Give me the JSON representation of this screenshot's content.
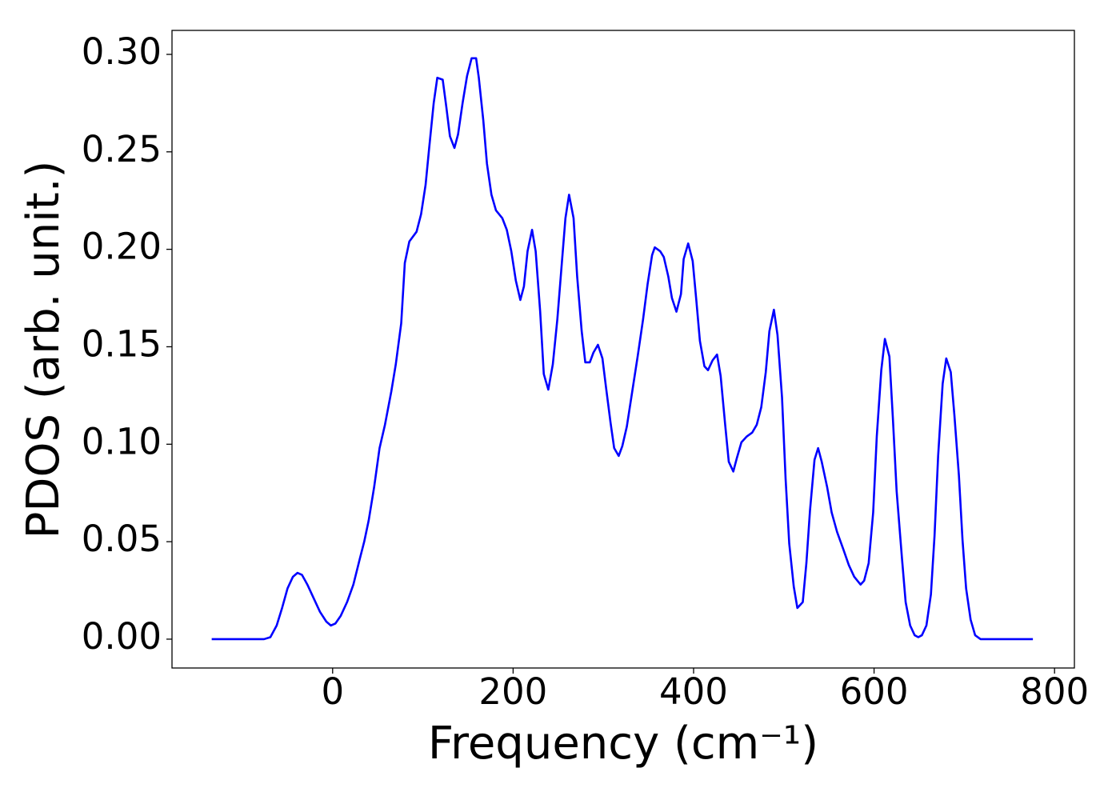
{
  "chart_data": {
    "type": "line",
    "x_label": "Frequency (cm⁻¹)",
    "y_label": "PDOS (arb. unit.)",
    "x": [
      -134,
      -76,
      -69,
      -62,
      -56,
      -50,
      -44,
      -39,
      -34,
      -28,
      -21,
      -14,
      -7,
      -2,
      3,
      9,
      16,
      23,
      30,
      35,
      40,
      46,
      52,
      58,
      65,
      70,
      76,
      80,
      85,
      93,
      98,
      103,
      107,
      112,
      116,
      122,
      126,
      130,
      135,
      139,
      144,
      149,
      154,
      159,
      162,
      167,
      171,
      176,
      181,
      188,
      193,
      198,
      203,
      208,
      212,
      216,
      221,
      225,
      230,
      234,
      239,
      244,
      249,
      254,
      258,
      262,
      267,
      271,
      276,
      280,
      285,
      289,
      294,
      299,
      303,
      308,
      312,
      317,
      321,
      326,
      332,
      338,
      344,
      349,
      354,
      357,
      363,
      367,
      372,
      376,
      381,
      386,
      389,
      394,
      399,
      403,
      407,
      412,
      416,
      421,
      426,
      430,
      435,
      439,
      444,
      448,
      453,
      459,
      465,
      470,
      475,
      480,
      484,
      489,
      493,
      498,
      502,
      506,
      511,
      515,
      521,
      525,
      529,
      534,
      538,
      542,
      548,
      553,
      559,
      566,
      572,
      578,
      585,
      589,
      594,
      599,
      603,
      608,
      612,
      617,
      621,
      625,
      631,
      635,
      640,
      645,
      649,
      653,
      658,
      663,
      667,
      671,
      676,
      680,
      685,
      689,
      694,
      698,
      702,
      707,
      712,
      718,
      731,
      776
    ],
    "series": [
      {
        "color": "#0000ff",
        "values": [
          0,
          0,
          0.001,
          0.007,
          0.016,
          0.026,
          0.032,
          0.034,
          0.033,
          0.028,
          0.021,
          0.014,
          0.009,
          0.007,
          0.008,
          0.012,
          0.019,
          0.028,
          0.041,
          0.05,
          0.061,
          0.078,
          0.098,
          0.11,
          0.127,
          0.141,
          0.162,
          0.193,
          0.204,
          0.209,
          0.218,
          0.233,
          0.252,
          0.275,
          0.288,
          0.287,
          0.273,
          0.258,
          0.252,
          0.259,
          0.275,
          0.289,
          0.298,
          0.298,
          0.288,
          0.266,
          0.244,
          0.228,
          0.22,
          0.216,
          0.21,
          0.199,
          0.184,
          0.174,
          0.181,
          0.199,
          0.21,
          0.199,
          0.168,
          0.136,
          0.128,
          0.141,
          0.164,
          0.193,
          0.216,
          0.228,
          0.216,
          0.186,
          0.158,
          0.142,
          0.142,
          0.147,
          0.151,
          0.144,
          0.129,
          0.111,
          0.098,
          0.094,
          0.099,
          0.109,
          0.127,
          0.145,
          0.164,
          0.182,
          0.197,
          0.201,
          0.199,
          0.196,
          0.186,
          0.175,
          0.168,
          0.177,
          0.195,
          0.203,
          0.194,
          0.174,
          0.153,
          0.14,
          0.138,
          0.143,
          0.146,
          0.135,
          0.11,
          0.091,
          0.086,
          0.093,
          0.101,
          0.104,
          0.106,
          0.11,
          0.119,
          0.137,
          0.158,
          0.169,
          0.156,
          0.124,
          0.082,
          0.049,
          0.027,
          0.016,
          0.019,
          0.039,
          0.066,
          0.092,
          0.098,
          0.091,
          0.078,
          0.065,
          0.055,
          0.046,
          0.038,
          0.032,
          0.028,
          0.03,
          0.039,
          0.065,
          0.104,
          0.138,
          0.154,
          0.145,
          0.112,
          0.076,
          0.041,
          0.019,
          0.007,
          0.002,
          0.001,
          0.002,
          0.007,
          0.023,
          0.053,
          0.094,
          0.131,
          0.144,
          0.137,
          0.115,
          0.084,
          0.051,
          0.026,
          0.01,
          0.002,
          0,
          0,
          0
        ]
      }
    ],
    "xlim": [
      -178,
      822
    ],
    "ylim": [
      -0.0148,
      0.3123
    ],
    "xticks": [
      0,
      200,
      400,
      600,
      800
    ],
    "yticks": [
      {
        "value": 0,
        "label": "0.00"
      },
      {
        "value": 0.05,
        "label": "0.05"
      },
      {
        "value": 0.1,
        "label": "0.10"
      },
      {
        "value": 0.15,
        "label": "0.15"
      },
      {
        "value": 0.2,
        "label": "0.20"
      },
      {
        "value": 0.25,
        "label": "0.25"
      },
      {
        "value": 0.3,
        "label": "0.30"
      }
    ]
  }
}
